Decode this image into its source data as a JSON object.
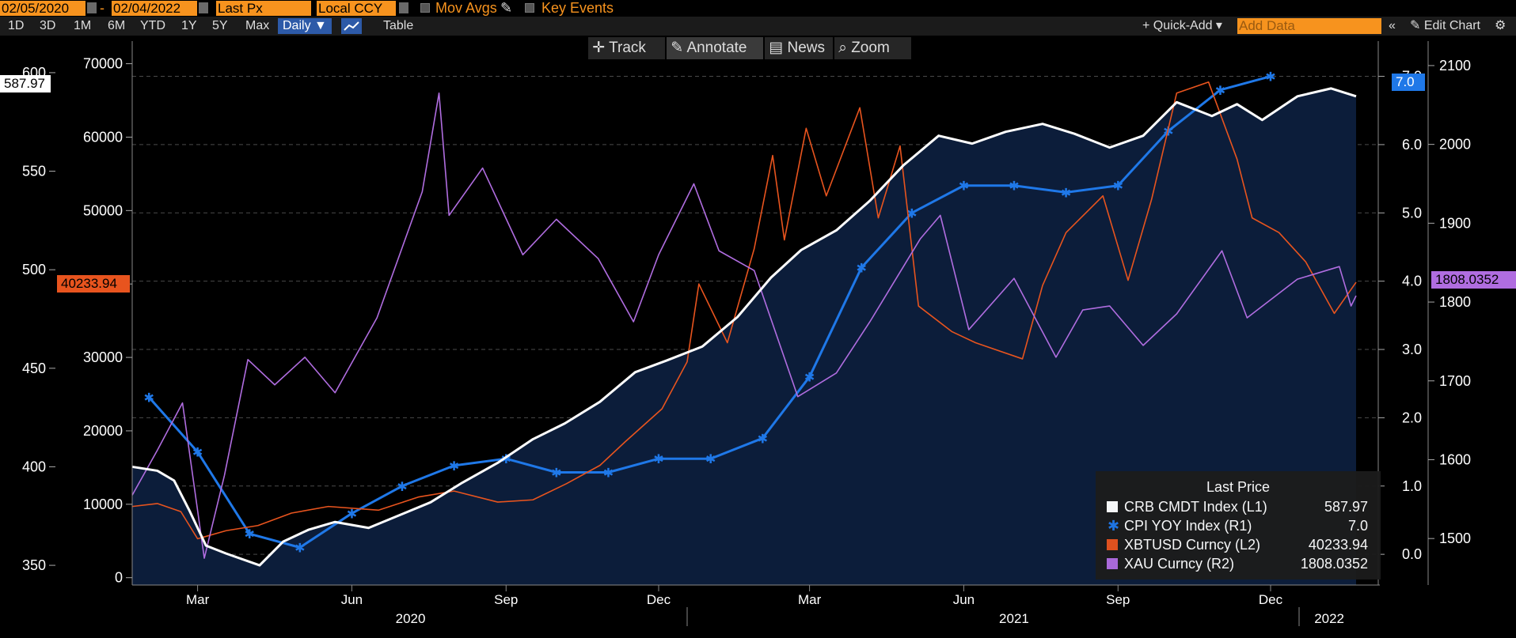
{
  "toolbar": {
    "start_date": "02/05/2020",
    "end_date": "02/04/2022",
    "field": "Last Px",
    "currency": "Local CCY",
    "mov_avgs": "Mov Avgs",
    "key_events": "Key Events",
    "periods": [
      "1D",
      "3D",
      "1M",
      "6M",
      "YTD",
      "1Y",
      "5Y",
      "Max"
    ],
    "frequency": "Daily",
    "table": "Table",
    "quick_add": "+ Quick-Add",
    "add_data_placeholder": "Add Data",
    "edit_chart": "Edit Chart"
  },
  "tools": {
    "track": "Track",
    "annotate": "Annotate",
    "news": "News",
    "zoom": "Zoom"
  },
  "colors": {
    "background": "#000000",
    "area_fill": "#0c1d3a",
    "crb": "#ffffff",
    "cpi": "#1f78e8",
    "xbt": "#e8541e",
    "xau": "#b06de0",
    "toolbar_orange": "#f7931e"
  },
  "flags": {
    "crb": "587.97",
    "xbt": "40233.94",
    "cpi": "7.0",
    "xau": "1808.0352"
  },
  "legend": {
    "title": "Last Price",
    "items": [
      {
        "name": "CRB CMDT Index  (L1)",
        "value": "587.97",
        "color": "#ffffff",
        "marker": "square"
      },
      {
        "name": "CPI YOY Index  (R1)",
        "value": "7.0",
        "color": "#1f78e8",
        "marker": "star"
      },
      {
        "name": "XBTUSD Curncy  (L2)",
        "value": "40233.94",
        "color": "#e8541e",
        "marker": "square"
      },
      {
        "name": "XAU Curncy  (R2)",
        "value": "1808.0352",
        "color": "#b06de0",
        "marker": "square"
      }
    ]
  },
  "chart_data": {
    "type": "line",
    "x_axis": {
      "months": [
        "Mar",
        "Jun",
        "Sep",
        "Dec",
        "Mar",
        "Jun",
        "Sep",
        "Dec"
      ],
      "years": [
        "2020",
        "2021",
        "2022"
      ],
      "range": [
        "2020-02-05",
        "2022-02-04"
      ]
    },
    "axes": {
      "L1": {
        "ticks": [
          350,
          400,
          450,
          500,
          550,
          600
        ],
        "range": [
          340,
          612
        ]
      },
      "L2": {
        "ticks": [
          0,
          10000,
          20000,
          30000,
          40000,
          50000,
          60000,
          70000
        ],
        "range": [
          -1000,
          72000
        ]
      },
      "R1": {
        "ticks": [
          0.0,
          1.0,
          2.0,
          3.0,
          4.0,
          5.0,
          6.0,
          7.0
        ],
        "range": [
          -0.45,
          7.4
        ]
      },
      "R2": {
        "ticks": [
          1500,
          1600,
          1700,
          1800,
          1900,
          2000,
          2100
        ],
        "range": [
          1441,
          2121
        ]
      }
    },
    "grid": true,
    "legend_position": "bottom-right",
    "series": [
      {
        "name": "CRB CMDT Index (L1)",
        "axis": "L1",
        "color": "#ffffff",
        "area": true,
        "points": [
          [
            "2020-02-05",
            400
          ],
          [
            "2020-02-20",
            398
          ],
          [
            "2020-03-01",
            393
          ],
          [
            "2020-03-10",
            378
          ],
          [
            "2020-03-20",
            360
          ],
          [
            "2020-04-01",
            356
          ],
          [
            "2020-04-21",
            350
          ],
          [
            "2020-05-05",
            362
          ],
          [
            "2020-05-20",
            368
          ],
          [
            "2020-06-05",
            372
          ],
          [
            "2020-06-25",
            369
          ],
          [
            "2020-07-15",
            376
          ],
          [
            "2020-08-01",
            382
          ],
          [
            "2020-08-20",
            392
          ],
          [
            "2020-09-10",
            402
          ],
          [
            "2020-10-01",
            414
          ],
          [
            "2020-10-20",
            422
          ],
          [
            "2020-11-10",
            433
          ],
          [
            "2020-12-01",
            448
          ],
          [
            "2020-12-20",
            454
          ],
          [
            "2021-01-10",
            461
          ],
          [
            "2021-01-31",
            476
          ],
          [
            "2021-02-20",
            496
          ],
          [
            "2021-03-10",
            510
          ],
          [
            "2021-03-31",
            520
          ],
          [
            "2021-04-20",
            535
          ],
          [
            "2021-05-10",
            553
          ],
          [
            "2021-05-31",
            568
          ],
          [
            "2021-06-20",
            564
          ],
          [
            "2021-07-10",
            570
          ],
          [
            "2021-08-01",
            574
          ],
          [
            "2021-08-20",
            569
          ],
          [
            "2021-09-10",
            562
          ],
          [
            "2021-09-30",
            568
          ],
          [
            "2021-10-20",
            585
          ],
          [
            "2021-11-10",
            578
          ],
          [
            "2021-11-25",
            584
          ],
          [
            "2021-12-10",
            576
          ],
          [
            "2021-12-31",
            588
          ],
          [
            "2022-01-20",
            592
          ],
          [
            "2022-02-04",
            588
          ]
        ]
      },
      {
        "name": "CPI YOY Index (R1)",
        "axis": "R1",
        "color": "#1f78e8",
        "marker": "star",
        "points": [
          [
            "2020-02-15",
            2.3
          ],
          [
            "2020-03-15",
            1.5
          ],
          [
            "2020-04-15",
            0.3
          ],
          [
            "2020-05-15",
            0.1
          ],
          [
            "2020-06-15",
            0.6
          ],
          [
            "2020-07-15",
            1.0
          ],
          [
            "2020-08-15",
            1.3
          ],
          [
            "2020-09-15",
            1.4
          ],
          [
            "2020-10-15",
            1.2
          ],
          [
            "2020-11-15",
            1.2
          ],
          [
            "2020-12-15",
            1.4
          ],
          [
            "2021-01-15",
            1.4
          ],
          [
            "2021-02-15",
            1.7
          ],
          [
            "2021-03-15",
            2.6
          ],
          [
            "2021-04-15",
            4.2
          ],
          [
            "2021-05-15",
            5.0
          ],
          [
            "2021-06-15",
            5.4
          ],
          [
            "2021-07-15",
            5.4
          ],
          [
            "2021-08-15",
            5.3
          ],
          [
            "2021-09-15",
            5.4
          ],
          [
            "2021-10-15",
            6.2
          ],
          [
            "2021-11-15",
            6.8
          ],
          [
            "2021-12-15",
            7.0
          ]
        ]
      },
      {
        "name": "XBTUSD Curncy (L2)",
        "axis": "L2",
        "color": "#e8541e",
        "points": [
          [
            "2020-02-05",
            9700
          ],
          [
            "2020-02-20",
            10100
          ],
          [
            "2020-03-05",
            9000
          ],
          [
            "2020-03-15",
            5300
          ],
          [
            "2020-04-01",
            6400
          ],
          [
            "2020-04-20",
            7100
          ],
          [
            "2020-05-10",
            8800
          ],
          [
            "2020-06-01",
            9700
          ],
          [
            "2020-07-01",
            9200
          ],
          [
            "2020-07-25",
            11000
          ],
          [
            "2020-08-15",
            11800
          ],
          [
            "2020-09-10",
            10300
          ],
          [
            "2020-10-01",
            10600
          ],
          [
            "2020-10-21",
            12800
          ],
          [
            "2020-11-10",
            15300
          ],
          [
            "2020-11-25",
            18500
          ],
          [
            "2020-12-17",
            23000
          ],
          [
            "2021-01-01",
            29400
          ],
          [
            "2021-01-08",
            40000
          ],
          [
            "2021-01-25",
            32000
          ],
          [
            "2021-02-10",
            44800
          ],
          [
            "2021-02-21",
            57500
          ],
          [
            "2021-02-28",
            46000
          ],
          [
            "2021-03-13",
            61200
          ],
          [
            "2021-03-25",
            52000
          ],
          [
            "2021-04-14",
            64000
          ],
          [
            "2021-04-25",
            49000
          ],
          [
            "2021-05-08",
            58800
          ],
          [
            "2021-05-19",
            37000
          ],
          [
            "2021-06-08",
            33500
          ],
          [
            "2021-06-22",
            32000
          ],
          [
            "2021-07-20",
            29800
          ],
          [
            "2021-08-01",
            39800
          ],
          [
            "2021-08-15",
            47000
          ],
          [
            "2021-09-06",
            52000
          ],
          [
            "2021-09-21",
            40500
          ],
          [
            "2021-10-05",
            51500
          ],
          [
            "2021-10-20",
            66000
          ],
          [
            "2021-11-08",
            67500
          ],
          [
            "2021-11-25",
            57000
          ],
          [
            "2021-12-04",
            49000
          ],
          [
            "2021-12-20",
            47000
          ],
          [
            "2022-01-05",
            43000
          ],
          [
            "2022-01-22",
            36000
          ],
          [
            "2022-02-04",
            40234
          ]
        ]
      },
      {
        "name": "XAU Curncy (R2)",
        "axis": "R2",
        "color": "#b06de0",
        "points": [
          [
            "2020-02-05",
            1555
          ],
          [
            "2020-02-20",
            1612
          ],
          [
            "2020-03-06",
            1672
          ],
          [
            "2020-03-19",
            1475
          ],
          [
            "2020-03-31",
            1580
          ],
          [
            "2020-04-14",
            1727
          ],
          [
            "2020-04-30",
            1695
          ],
          [
            "2020-05-18",
            1730
          ],
          [
            "2020-06-05",
            1685
          ],
          [
            "2020-06-30",
            1780
          ],
          [
            "2020-07-27",
            1940
          ],
          [
            "2020-08-06",
            2065
          ],
          [
            "2020-08-12",
            1910
          ],
          [
            "2020-09-01",
            1970
          ],
          [
            "2020-09-25",
            1860
          ],
          [
            "2020-10-15",
            1905
          ],
          [
            "2020-11-09",
            1855
          ],
          [
            "2020-11-30",
            1775
          ],
          [
            "2020-12-15",
            1860
          ],
          [
            "2021-01-05",
            1950
          ],
          [
            "2021-01-20",
            1865
          ],
          [
            "2021-02-10",
            1840
          ],
          [
            "2021-03-08",
            1680
          ],
          [
            "2021-03-31",
            1710
          ],
          [
            "2021-04-20",
            1775
          ],
          [
            "2021-05-20",
            1880
          ],
          [
            "2021-06-01",
            1910
          ],
          [
            "2021-06-18",
            1765
          ],
          [
            "2021-07-15",
            1830
          ],
          [
            "2021-08-09",
            1730
          ],
          [
            "2021-08-25",
            1790
          ],
          [
            "2021-09-10",
            1795
          ],
          [
            "2021-09-30",
            1745
          ],
          [
            "2021-10-20",
            1785
          ],
          [
            "2021-11-16",
            1865
          ],
          [
            "2021-12-01",
            1780
          ],
          [
            "2021-12-31",
            1829
          ],
          [
            "2022-01-25",
            1845
          ],
          [
            "2022-02-01",
            1795
          ],
          [
            "2022-02-04",
            1808
          ]
        ]
      }
    ]
  }
}
